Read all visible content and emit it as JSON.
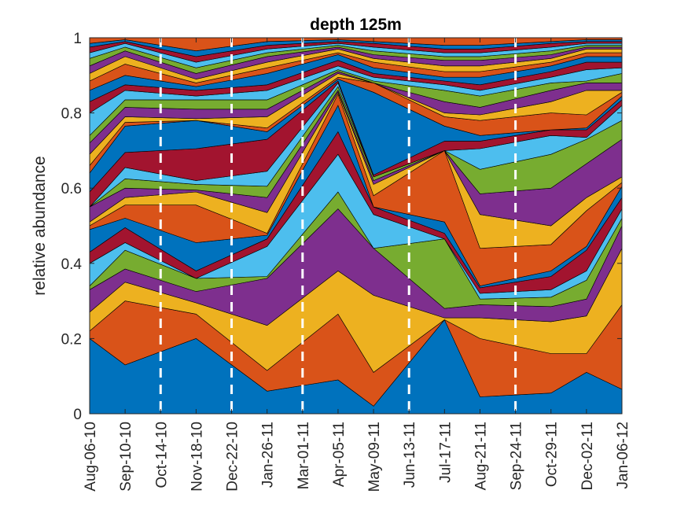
{
  "chart_data": {
    "type": "area",
    "stacked": true,
    "title": "depth 125m",
    "xlabel": "",
    "ylabel": "relative abundance",
    "ylim": [
      0,
      1
    ],
    "yticks": [
      "0",
      "0.2",
      "0.4",
      "0.6",
      "0.8",
      "1"
    ],
    "ytick_values": [
      0,
      0.2,
      0.4,
      0.6,
      0.8,
      1
    ],
    "categories": [
      "Aug-06-10",
      "Sep-10-10",
      "Oct-14-10",
      "Nov-18-10",
      "Dec-22-10",
      "Jan-26-11",
      "Mar-01-11",
      "Apr-05-11",
      "May-09-11",
      "Jun-13-11",
      "Jul-17-11",
      "Aug-21-11",
      "Sep-24-11",
      "Oct-29-11",
      "Dec-02-11",
      "Jan-06-12"
    ],
    "sample_index": [
      0,
      1,
      3,
      5,
      7,
      8,
      10,
      11,
      13,
      14,
      15
    ],
    "dashed_lines_at": [
      "Oct-14-10",
      "Dec-22-10",
      "Mar-01-11",
      "Jun-13-11",
      "Sep-24-11"
    ],
    "palette": [
      "#0072BD",
      "#D95319",
      "#EDB120",
      "#7E2F8E",
      "#77AC30",
      "#4DBEEE",
      "#A2142F"
    ],
    "boundaries": [
      [
        0.2,
        0.13,
        0.2,
        0.06,
        0.09,
        0.02,
        0.25,
        0.045,
        0.055,
        0.11,
        0.065
      ],
      [
        0.22,
        0.3,
        0.265,
        0.115,
        0.265,
        0.11,
        0.25,
        0.2,
        0.16,
        0.16,
        0.29
      ],
      [
        0.27,
        0.35,
        0.295,
        0.235,
        0.38,
        0.315,
        0.255,
        0.255,
        0.245,
        0.26,
        0.44
      ],
      [
        0.33,
        0.385,
        0.325,
        0.36,
        0.545,
        0.44,
        0.28,
        0.29,
        0.285,
        0.305,
        0.5
      ],
      [
        0.34,
        0.435,
        0.36,
        0.365,
        0.59,
        0.44,
        0.465,
        0.305,
        0.31,
        0.355,
        0.52
      ],
      [
        0.4,
        0.455,
        0.36,
        0.445,
        0.69,
        0.53,
        0.465,
        0.32,
        0.33,
        0.38,
        0.545
      ],
      [
        0.43,
        0.495,
        0.38,
        0.465,
        0.75,
        0.55,
        0.48,
        0.335,
        0.365,
        0.435,
        0.575
      ],
      [
        0.49,
        0.52,
        0.455,
        0.475,
        0.82,
        0.55,
        0.51,
        0.34,
        0.38,
        0.445,
        0.605
      ],
      [
        0.5,
        0.555,
        0.555,
        0.48,
        0.85,
        0.58,
        0.7,
        0.44,
        0.45,
        0.54,
        0.615
      ],
      [
        0.51,
        0.575,
        0.59,
        0.535,
        0.855,
        0.61,
        0.7,
        0.53,
        0.5,
        0.575,
        0.63
      ],
      [
        0.55,
        0.6,
        0.595,
        0.575,
        0.86,
        0.62,
        0.7,
        0.585,
        0.6,
        0.665,
        0.73
      ],
      [
        0.55,
        0.625,
        0.61,
        0.605,
        0.87,
        0.63,
        0.7,
        0.65,
        0.69,
        0.73,
        0.78
      ],
      [
        0.55,
        0.655,
        0.62,
        0.645,
        0.88,
        0.63,
        0.7,
        0.705,
        0.74,
        0.735,
        0.82
      ],
      [
        0.59,
        0.695,
        0.705,
        0.73,
        0.885,
        0.635,
        0.725,
        0.725,
        0.755,
        0.755,
        0.835
      ],
      [
        0.64,
        0.765,
        0.78,
        0.75,
        0.89,
        0.855,
        0.765,
        0.74,
        0.755,
        0.76,
        0.845
      ],
      [
        0.66,
        0.775,
        0.78,
        0.76,
        0.895,
        0.88,
        0.79,
        0.78,
        0.8,
        0.795,
        0.855
      ],
      [
        0.69,
        0.79,
        0.785,
        0.79,
        0.905,
        0.88,
        0.8,
        0.795,
        0.83,
        0.86,
        0.86
      ],
      [
        0.72,
        0.815,
        0.81,
        0.81,
        0.91,
        0.88,
        0.83,
        0.815,
        0.86,
        0.88,
        0.88
      ],
      [
        0.74,
        0.835,
        0.835,
        0.835,
        0.915,
        0.885,
        0.86,
        0.845,
        0.88,
        0.885,
        0.905
      ],
      [
        0.8,
        0.86,
        0.845,
        0.86,
        0.925,
        0.895,
        0.875,
        0.86,
        0.895,
        0.915,
        0.92
      ],
      [
        0.83,
        0.875,
        0.86,
        0.875,
        0.94,
        0.905,
        0.885,
        0.875,
        0.91,
        0.935,
        0.935
      ],
      [
        0.86,
        0.9,
        0.87,
        0.905,
        0.955,
        0.92,
        0.895,
        0.895,
        0.925,
        0.95,
        0.95
      ],
      [
        0.885,
        0.93,
        0.88,
        0.92,
        0.96,
        0.935,
        0.91,
        0.91,
        0.935,
        0.96,
        0.96
      ],
      [
        0.905,
        0.95,
        0.89,
        0.935,
        0.97,
        0.945,
        0.925,
        0.925,
        0.945,
        0.97,
        0.97
      ],
      [
        0.925,
        0.965,
        0.905,
        0.95,
        0.975,
        0.955,
        0.94,
        0.94,
        0.955,
        0.975,
        0.975
      ],
      [
        0.945,
        0.975,
        0.92,
        0.96,
        0.98,
        0.965,
        0.95,
        0.95,
        0.965,
        0.98,
        0.98
      ],
      [
        0.96,
        0.985,
        0.935,
        0.97,
        0.985,
        0.975,
        0.96,
        0.96,
        0.975,
        0.985,
        0.985
      ],
      [
        0.975,
        0.99,
        0.95,
        0.98,
        0.99,
        0.985,
        0.97,
        0.97,
        0.985,
        0.99,
        0.99
      ],
      [
        0.985,
        0.995,
        0.965,
        0.99,
        0.995,
        0.99,
        0.98,
        0.98,
        0.99,
        0.995,
        0.995
      ],
      [
        1,
        1,
        1,
        1,
        1,
        1,
        1,
        1,
        1,
        1,
        1
      ]
    ]
  }
}
